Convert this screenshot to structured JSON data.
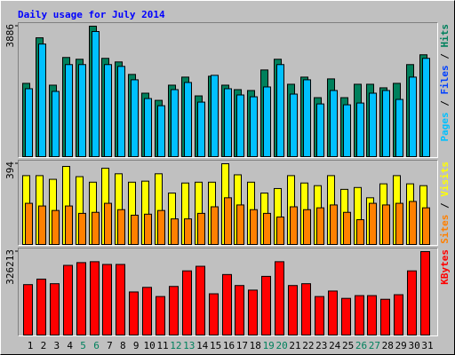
{
  "chart_data": [
    {
      "type": "bar",
      "title": "Daily usage for July 2014",
      "title_color": "#0000ff",
      "ylim": [
        0,
        3886
      ],
      "yticks": [
        3886
      ],
      "label_separator": " / ",
      "series": [
        {
          "name": "Hits",
          "color": "#00805c",
          "values": [
            2183,
            3540,
            2129,
            2954,
            2901,
            3886,
            2928,
            2821,
            2449,
            1890,
            1677,
            2129,
            2369,
            1810,
            2395,
            2129,
            1996,
            1970,
            2582,
            2901,
            2156,
            2369,
            1757,
            2316,
            1757,
            2156,
            2156,
            2050,
            2183,
            2742,
            3034
          ]
        },
        {
          "name": "Files",
          "color": "#0040ff"
        },
        {
          "name": "Pages",
          "color": "#00c0ff",
          "values": [
            2023,
            3354,
            1943,
            2742,
            2742,
            3727,
            2742,
            2688,
            2289,
            1730,
            1517,
            1996,
            2209,
            1624,
            2422,
            2023,
            1837,
            1783,
            2076,
            2742,
            1863,
            2289,
            1570,
            1970,
            1544,
            1597,
            1890,
            1970,
            1704,
            2369,
            2928
          ]
        }
      ]
    },
    {
      "type": "bar",
      "ylim": [
        0,
        394
      ],
      "yticks": [
        394
      ],
      "label_separator": " / ",
      "series": [
        {
          "name": "Visits",
          "color": "#ffff00",
          "values": [
            336,
            336,
            318,
            381,
            331,
            304,
            372,
            345,
            304,
            309,
            345,
            251,
            300,
            304,
            304,
            394,
            340,
            304,
            251,
            273,
            336,
            300,
            287,
            336,
            269,
            278,
            228,
            296,
            336,
            296,
            287
          ]
        },
        {
          "name": "Sites",
          "color": "#ff8000",
          "values": [
            201,
            188,
            166,
            188,
            152,
            157,
            201,
            170,
            143,
            148,
            166,
            125,
            125,
            152,
            184,
            228,
            193,
            170,
            152,
            134,
            184,
            170,
            179,
            193,
            157,
            121,
            201,
            193,
            201,
            210,
            179
          ]
        }
      ]
    },
    {
      "type": "bar",
      "ylim": [
        0,
        326213
      ],
      "yticks": [
        326213
      ],
      "categories": [
        "1",
        "2",
        "3",
        "4",
        "5",
        "6",
        "7",
        "8",
        "9",
        "10",
        "11",
        "12",
        "13",
        "14",
        "15",
        "16",
        "17",
        "18",
        "19",
        "20",
        "21",
        "22",
        "23",
        "24",
        "25",
        "26",
        "27",
        "28",
        "29",
        "30",
        "31"
      ],
      "category_colors": [
        "#000000",
        "#000000",
        "#000000",
        "#000000",
        "#00805c",
        "#00805c",
        "#000000",
        "#000000",
        "#000000",
        "#000000",
        "#000000",
        "#00805c",
        "#00805c",
        "#000000",
        "#000000",
        "#000000",
        "#000000",
        "#000000",
        "#00805c",
        "#00805c",
        "#000000",
        "#000000",
        "#000000",
        "#000000",
        "#000000",
        "#00805c",
        "#00805c",
        "#000000",
        "#000000",
        "#000000",
        "#000000"
      ],
      "series": [
        {
          "name": "KBytes",
          "color": "#ff0000",
          "values": [
            197151,
            218659,
            200736,
            272432,
            283186,
            286770,
            276016,
            276016,
            168476,
            186400,
            150553,
            189985,
            250925,
            268848,
            161307,
            236586,
            193569,
            175645,
            229416,
            286770,
            193569,
            200736,
            150553,
            172061,
            143384,
            154137,
            154137,
            139799,
            157722,
            250925,
            326213
          ]
        }
      ]
    }
  ]
}
